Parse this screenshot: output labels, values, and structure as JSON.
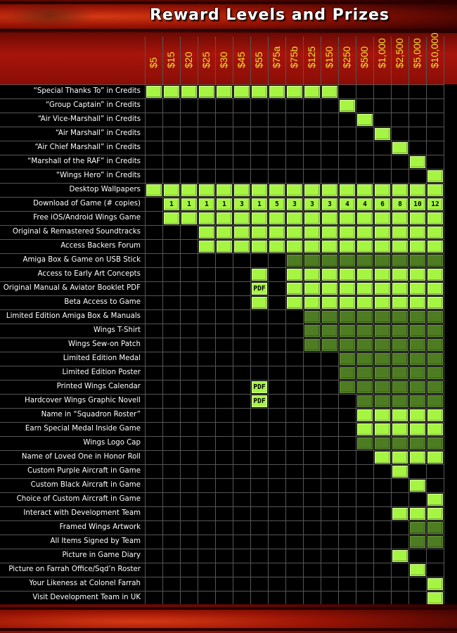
{
  "title": "Reward Levels and Prizes",
  "colors": {
    "active": "#a6f542",
    "dim": "#4e7c22",
    "header": "#a8140b",
    "level_text": "#f0e232"
  },
  "levels": [
    "$5",
    "$15",
    "$20",
    "$25",
    "$30",
    "$45",
    "$55",
    "$75a",
    "$75b",
    "$125",
    "$150",
    "$250",
    "$500",
    "$1,000",
    "$2,500",
    "$5,000",
    "$10,000"
  ],
  "rows": [
    {
      "label": "“Special Thanks To” in Credits",
      "cells": [
        "on",
        "on",
        "on",
        "on",
        "on",
        "on",
        "on",
        "on",
        "on",
        "on",
        "on",
        "",
        "",
        "",
        "",
        "",
        ""
      ]
    },
    {
      "label": "“Group Captain” in Credits",
      "cells": [
        "",
        "",
        "",
        "",
        "",
        "",
        "",
        "",
        "",
        "",
        "",
        "on",
        "",
        "",
        "",
        "",
        ""
      ]
    },
    {
      "label": "“Air Vice-Marshall” in Credits",
      "cells": [
        "",
        "",
        "",
        "",
        "",
        "",
        "",
        "",
        "",
        "",
        "",
        "",
        "on",
        "",
        "",
        "",
        ""
      ]
    },
    {
      "label": "“Air Marshall” in Credits",
      "cells": [
        "",
        "",
        "",
        "",
        "",
        "",
        "",
        "",
        "",
        "",
        "",
        "",
        "",
        "on",
        "",
        "",
        ""
      ]
    },
    {
      "label": "“Air Chief Marshall” in Credits",
      "cells": [
        "",
        "",
        "",
        "",
        "",
        "",
        "",
        "",
        "",
        "",
        "",
        "",
        "",
        "",
        "on",
        "",
        ""
      ]
    },
    {
      "label": "“Marshall of the RAF” in Credits",
      "cells": [
        "",
        "",
        "",
        "",
        "",
        "",
        "",
        "",
        "",
        "",
        "",
        "",
        "",
        "",
        "",
        "on",
        ""
      ]
    },
    {
      "label": "“Wings Hero” in Credits",
      "cells": [
        "",
        "",
        "",
        "",
        "",
        "",
        "",
        "",
        "",
        "",
        "",
        "",
        "",
        "",
        "",
        "",
        "on"
      ]
    },
    {
      "label": "Desktop Wallpapers",
      "cells": [
        "on",
        "on",
        "on",
        "on",
        "on",
        "on",
        "on",
        "on",
        "on",
        "on",
        "on",
        "on",
        "on",
        "on",
        "on",
        "on",
        "on"
      ]
    },
    {
      "label": "Download of Game (# copies)",
      "cells": [
        "",
        "1",
        "1",
        "1",
        "1",
        "3",
        "1",
        "5",
        "3",
        "3",
        "3",
        "4",
        "4",
        "6",
        "8",
        "10",
        "12"
      ]
    },
    {
      "label": "Free iOS/Android Wings Game",
      "cells": [
        "",
        "on",
        "on",
        "on",
        "on",
        "on",
        "on",
        "on",
        "on",
        "on",
        "on",
        "on",
        "on",
        "on",
        "on",
        "on",
        "on"
      ]
    },
    {
      "label": "Original & Remastered Soundtracks",
      "cells": [
        "",
        "",
        "",
        "on",
        "on",
        "on",
        "on",
        "on",
        "on",
        "on",
        "on",
        "on",
        "on",
        "on",
        "on",
        "on",
        "on"
      ]
    },
    {
      "label": "Access Backers Forum",
      "cells": [
        "",
        "",
        "",
        "on",
        "on",
        "on",
        "on",
        "on",
        "on",
        "on",
        "on",
        "on",
        "on",
        "on",
        "on",
        "on",
        "on"
      ]
    },
    {
      "label": "Amiga Box & Game on USB Stick",
      "cells": [
        "",
        "",
        "",
        "",
        "",
        "",
        "",
        "",
        "dim",
        "dim",
        "dim",
        "dim",
        "dim",
        "dim",
        "dim",
        "dim",
        "dim"
      ]
    },
    {
      "label": "Access to Early Art Concepts",
      "cells": [
        "",
        "",
        "",
        "",
        "",
        "",
        "on",
        "",
        "on",
        "on",
        "on",
        "on",
        "on",
        "on",
        "on",
        "on",
        "on"
      ]
    },
    {
      "label": "Original Manual & Aviator Booklet PDF",
      "cells": [
        "",
        "",
        "",
        "",
        "",
        "",
        "PDF",
        "",
        "on",
        "on",
        "on",
        "on",
        "on",
        "on",
        "on",
        "on",
        "on"
      ]
    },
    {
      "label": "Beta Access to Game",
      "cells": [
        "",
        "",
        "",
        "",
        "",
        "",
        "on",
        "",
        "on",
        "on",
        "on",
        "on",
        "on",
        "on",
        "on",
        "on",
        "on"
      ]
    },
    {
      "label": "Limited Edition Amiga Box & Manuals",
      "cells": [
        "",
        "",
        "",
        "",
        "",
        "",
        "",
        "",
        "",
        "dim",
        "dim",
        "dim",
        "dim",
        "dim",
        "dim",
        "dim",
        "dim"
      ]
    },
    {
      "label": "Wings T-Shirt",
      "cells": [
        "",
        "",
        "",
        "",
        "",
        "",
        "",
        "",
        "",
        "dim",
        "dim",
        "dim",
        "dim",
        "dim",
        "dim",
        "dim",
        "dim"
      ]
    },
    {
      "label": "Wings Sew-on Patch",
      "cells": [
        "",
        "",
        "",
        "",
        "",
        "",
        "",
        "",
        "",
        "dim",
        "dim",
        "dim",
        "dim",
        "dim",
        "dim",
        "dim",
        "dim"
      ]
    },
    {
      "label": "Limited Edition Medal",
      "cells": [
        "",
        "",
        "",
        "",
        "",
        "",
        "",
        "",
        "",
        "",
        "",
        "dim",
        "dim",
        "dim",
        "dim",
        "dim",
        "dim"
      ]
    },
    {
      "label": "Limited Edition Poster",
      "cells": [
        "",
        "",
        "",
        "",
        "",
        "",
        "",
        "",
        "",
        "",
        "",
        "dim",
        "dim",
        "dim",
        "dim",
        "dim",
        "dim"
      ]
    },
    {
      "label": "Printed Wings Calendar",
      "cells": [
        "",
        "",
        "",
        "",
        "",
        "",
        "PDF",
        "",
        "",
        "",
        "",
        "dim",
        "dim",
        "dim",
        "dim",
        "dim",
        "dim"
      ]
    },
    {
      "label": "Hardcover Wings Graphic Novell",
      "cells": [
        "",
        "",
        "",
        "",
        "",
        "",
        "PDF",
        "",
        "",
        "",
        "",
        "",
        "dim",
        "dim",
        "dim",
        "dim",
        "dim"
      ]
    },
    {
      "label": "Name in “Squadron Roster”",
      "cells": [
        "",
        "",
        "",
        "",
        "",
        "",
        "",
        "",
        "",
        "",
        "",
        "",
        "on",
        "on",
        "on",
        "on",
        "on"
      ]
    },
    {
      "label": "Earn Special Medal Inside Game",
      "cells": [
        "",
        "",
        "",
        "",
        "",
        "",
        "",
        "",
        "",
        "",
        "",
        "",
        "on",
        "on",
        "on",
        "on",
        "on"
      ]
    },
    {
      "label": "Wings Logo Cap",
      "cells": [
        "",
        "",
        "",
        "",
        "",
        "",
        "",
        "",
        "",
        "",
        "",
        "",
        "dim",
        "dim",
        "dim",
        "dim",
        "dim"
      ]
    },
    {
      "label": "Name of Loved One in Honor Roll",
      "cells": [
        "",
        "",
        "",
        "",
        "",
        "",
        "",
        "",
        "",
        "",
        "",
        "",
        "",
        "on",
        "on",
        "on",
        "on"
      ]
    },
    {
      "label": "Custom Purple Aircraft in Game",
      "cells": [
        "",
        "",
        "",
        "",
        "",
        "",
        "",
        "",
        "",
        "",
        "",
        "",
        "",
        "",
        "on",
        "",
        ""
      ]
    },
    {
      "label": "Custom Black Aircraft in Game",
      "cells": [
        "",
        "",
        "",
        "",
        "",
        "",
        "",
        "",
        "",
        "",
        "",
        "",
        "",
        "",
        "",
        "on",
        ""
      ]
    },
    {
      "label": "Choice of Custom Aircraft in Game",
      "cells": [
        "",
        "",
        "",
        "",
        "",
        "",
        "",
        "",
        "",
        "",
        "",
        "",
        "",
        "",
        "",
        "",
        "on"
      ]
    },
    {
      "label": "Interact with Development Team",
      "cells": [
        "",
        "",
        "",
        "",
        "",
        "",
        "",
        "",
        "",
        "",
        "",
        "",
        "",
        "",
        "on",
        "on",
        "on"
      ]
    },
    {
      "label": "Framed Wings Artwork",
      "cells": [
        "",
        "",
        "",
        "",
        "",
        "",
        "",
        "",
        "",
        "",
        "",
        "",
        "",
        "",
        "",
        "dim",
        "dim"
      ]
    },
    {
      "label": "All Items Signed by Team",
      "cells": [
        "",
        "",
        "",
        "",
        "",
        "",
        "",
        "",
        "",
        "",
        "",
        "",
        "",
        "",
        "",
        "dim",
        "dim"
      ]
    },
    {
      "label": "Picture in Game Diary",
      "cells": [
        "",
        "",
        "",
        "",
        "",
        "",
        "",
        "",
        "",
        "",
        "",
        "",
        "",
        "",
        "on",
        "",
        ""
      ]
    },
    {
      "label": "Picture on Farrah Office/Sqd’n Roster",
      "cells": [
        "",
        "",
        "",
        "",
        "",
        "",
        "",
        "",
        "",
        "",
        "",
        "",
        "",
        "",
        "",
        "on",
        ""
      ]
    },
    {
      "label": "Your Likeness at Colonel Farrah",
      "cells": [
        "",
        "",
        "",
        "",
        "",
        "",
        "",
        "",
        "",
        "",
        "",
        "",
        "",
        "",
        "",
        "",
        "on"
      ]
    },
    {
      "label": "Visit Development Team in UK",
      "cells": [
        "",
        "",
        "",
        "",
        "",
        "",
        "",
        "",
        "",
        "",
        "",
        "",
        "",
        "",
        "",
        "",
        "on"
      ]
    }
  ]
}
